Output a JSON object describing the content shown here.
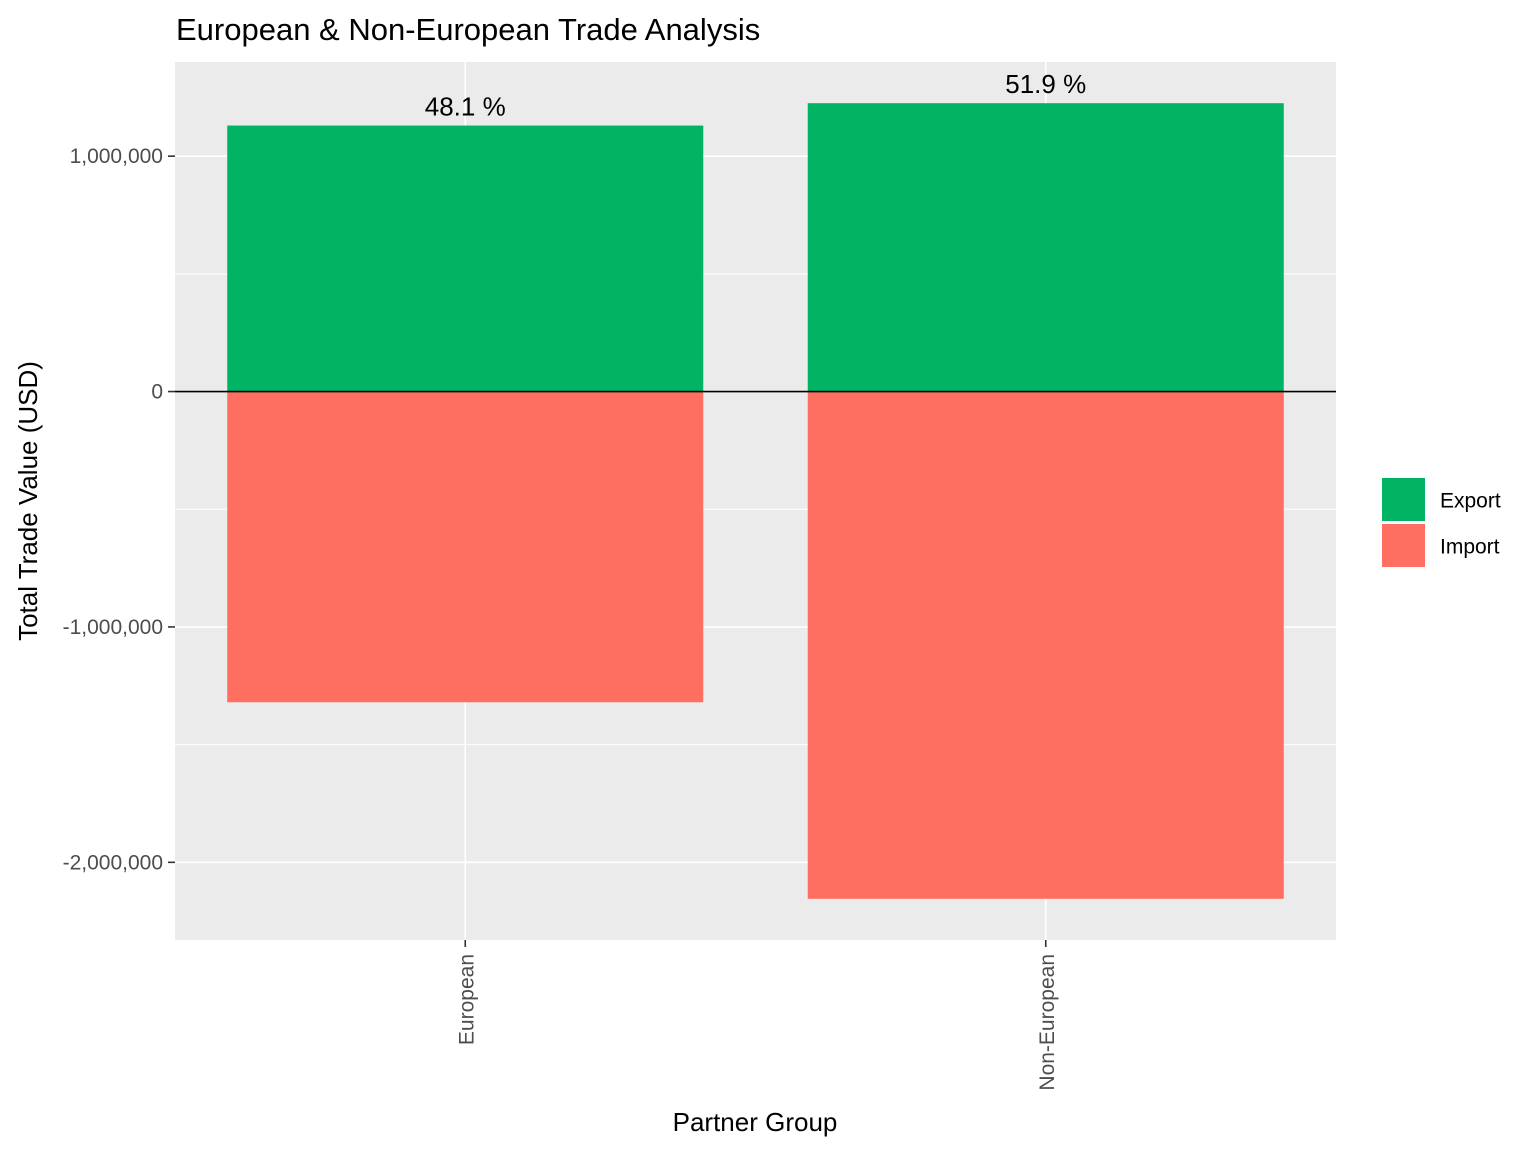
{
  "chart_data": {
    "type": "bar",
    "stacked": "diverging",
    "title": "European & Non-European Trade Analysis",
    "xlabel": "Partner Group",
    "ylabel": "Total Trade Value (USD)",
    "categories": [
      "European",
      "Non-European"
    ],
    "series": [
      {
        "name": "Export",
        "values": [
          1130000,
          1225000
        ],
        "color": "#00b464"
      },
      {
        "name": "Import",
        "values": [
          -1320000,
          -2155000
        ],
        "color": "#ff6f61"
      }
    ],
    "bar_labels": [
      "48.1 %",
      "51.9 %"
    ],
    "ylim": [
      -2330000,
      1400000
    ],
    "yticks": [
      -2000000,
      -1000000,
      0,
      1000000
    ],
    "ytick_labels": [
      "-2,000,000",
      "-1,000,000",
      "0",
      "1,000,000"
    ],
    "grid": true,
    "panel_background": "#ebebeb",
    "legend_position": "right"
  }
}
